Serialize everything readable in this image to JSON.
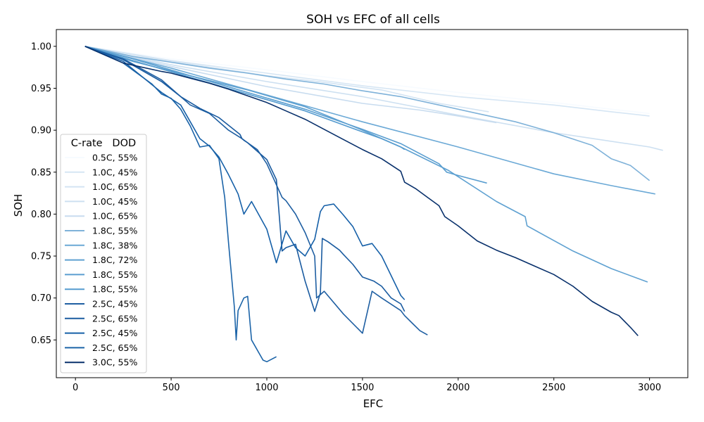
{
  "chart_data": {
    "type": "line",
    "title": "SOH vs EFC of all cells",
    "xlabel": "EFC",
    "ylabel": "SOH",
    "xlim": [
      -100,
      3200
    ],
    "ylim": [
      0.605,
      1.02
    ],
    "xticks": [
      0,
      500,
      1000,
      1500,
      2000,
      2500,
      3000
    ],
    "yticks": [
      0.65,
      0.7,
      0.75,
      0.8,
      0.85,
      0.9,
      0.95,
      1.0
    ],
    "xtick_labels": [
      "0",
      "500",
      "1000",
      "1500",
      "2000",
      "2500",
      "3000"
    ],
    "ytick_labels": [
      "0.65",
      "0.70",
      "0.75",
      "0.80",
      "0.85",
      "0.90",
      "0.95",
      "1.00"
    ],
    "grid": false,
    "legend": {
      "title": "C-rate   DOD",
      "placement": "center-left"
    },
    "series": [
      {
        "name": "0.5C, 55%",
        "color": "#f7fbff",
        "x": [
          50,
          500,
          1000,
          1500,
          2000,
          2500,
          2800,
          3000
        ],
        "y": [
          1.0,
          0.985,
          0.972,
          0.958,
          0.945,
          0.933,
          0.925,
          0.92
        ]
      },
      {
        "name": "1.0C, 45%",
        "color": "#d6e6f4",
        "x": [
          50,
          500,
          1000,
          1500,
          2000,
          2500,
          2800,
          3000
        ],
        "y": [
          1.0,
          0.983,
          0.968,
          0.953,
          0.94,
          0.93,
          0.922,
          0.917
        ]
      },
      {
        "name": "1.0C, 65%",
        "color": "#d3e4f3",
        "x": [
          50,
          500,
          1000,
          1300,
          1600,
          1900,
          2160
        ],
        "y": [
          1.0,
          0.982,
          0.965,
          0.957,
          0.948,
          0.932,
          0.922
        ]
      },
      {
        "name": "1.0C, 45%",
        "color": "#cde0f1",
        "x": [
          50,
          500,
          1000,
          1500,
          2000,
          2500,
          3000,
          3070
        ],
        "y": [
          1.0,
          0.978,
          0.958,
          0.94,
          0.918,
          0.897,
          0.88,
          0.876
        ]
      },
      {
        "name": "1.0C, 65%",
        "color": "#c8dcef",
        "x": [
          50,
          500,
          1000,
          1500,
          1800,
          2000,
          2200
        ],
        "y": [
          1.0,
          0.976,
          0.952,
          0.932,
          0.924,
          0.917,
          0.909
        ]
      },
      {
        "name": "1.8C, 55%",
        "color": "#7fb2d9",
        "x": [
          50,
          300,
          500,
          700,
          900,
          1100,
          1300,
          1500,
          1700,
          1900,
          2100,
          2300,
          2500,
          2700,
          2800,
          2900,
          3000
        ],
        "y": [
          1.0,
          0.988,
          0.981,
          0.974,
          0.968,
          0.961,
          0.955,
          0.947,
          0.94,
          0.93,
          0.92,
          0.91,
          0.897,
          0.882,
          0.866,
          0.858,
          0.84
        ]
      },
      {
        "name": "1.8C, 38%",
        "color": "#6ba9d6",
        "x": [
          50,
          500,
          1000,
          1500,
          2000,
          2500,
          2800,
          3030
        ],
        "y": [
          1.0,
          0.974,
          0.942,
          0.91,
          0.88,
          0.848,
          0.834,
          0.824
        ]
      },
      {
        "name": "1.8C, 72%",
        "color": "#5fa1d1",
        "x": [
          50,
          300,
          650,
          900,
          1200,
          1500,
          1700,
          1950,
          2200,
          2350,
          2360,
          2600,
          2800,
          2990
        ],
        "y": [
          1.0,
          0.982,
          0.962,
          0.948,
          0.928,
          0.9,
          0.88,
          0.852,
          0.815,
          0.797,
          0.786,
          0.756,
          0.735,
          0.719
        ]
      },
      {
        "name": "1.8C, 55%",
        "color": "#5a9ed0",
        "x": [
          50,
          300,
          600,
          900,
          1200,
          1500,
          1700,
          1900,
          1940,
          2000,
          2150
        ],
        "y": [
          1.0,
          0.985,
          0.965,
          0.945,
          0.925,
          0.901,
          0.884,
          0.86,
          0.85,
          0.846,
          0.837
        ]
      },
      {
        "name": "1.8C, 55%",
        "color": "#559bcf",
        "x": [
          50,
          300,
          600,
          900,
          1200,
          1500,
          1600,
          1700,
          1720
        ],
        "y": [
          1.0,
          0.983,
          0.963,
          0.943,
          0.923,
          0.898,
          0.89,
          0.88,
          0.877
        ]
      },
      {
        "name": "2.5C, 45%",
        "color": "#1f5fa2",
        "x": [
          50,
          250,
          450,
          550,
          600,
          650,
          700,
          800,
          870,
          880,
          900,
          950,
          1000,
          1050,
          1080,
          1100,
          1150,
          1200,
          1250,
          1260,
          1300,
          1400,
          1500,
          1550,
          1600,
          1700,
          1720,
          1760,
          1800,
          1840
        ],
        "y": [
          1.0,
          0.985,
          0.96,
          0.94,
          0.93,
          0.925,
          0.92,
          0.9,
          0.89,
          0.888,
          0.885,
          0.877,
          0.86,
          0.835,
          0.82,
          0.816,
          0.8,
          0.778,
          0.75,
          0.7,
          0.708,
          0.681,
          0.658,
          0.708,
          0.7,
          0.685,
          0.679,
          0.67,
          0.661,
          0.656
        ]
      },
      {
        "name": "2.5C, 65%",
        "color": "#1a5ba0",
        "x": [
          50,
          250,
          450,
          550,
          650,
          750,
          860,
          870,
          900,
          950,
          1000,
          1050,
          1080,
          1100,
          1150,
          1200,
          1250,
          1280,
          1290,
          1320,
          1380,
          1400,
          1450,
          1500,
          1560,
          1600,
          1650,
          1700,
          1720
        ],
        "y": [
          1.0,
          0.984,
          0.958,
          0.94,
          0.926,
          0.915,
          0.895,
          0.89,
          0.885,
          0.875,
          0.865,
          0.841,
          0.756,
          0.76,
          0.764,
          0.72,
          0.684,
          0.706,
          0.771,
          0.767,
          0.757,
          0.752,
          0.74,
          0.725,
          0.72,
          0.714,
          0.7,
          0.693,
          0.684
        ]
      },
      {
        "name": "2.5C, 45%",
        "color": "#1660a8",
        "x": [
          50,
          250,
          450,
          550,
          600,
          650,
          700,
          750,
          800,
          850,
          880,
          920,
          1000,
          1050,
          1100,
          1150,
          1200,
          1250,
          1280,
          1300,
          1350,
          1400,
          1450,
          1500,
          1550,
          1600,
          1700,
          1720
        ],
        "y": [
          1.0,
          0.982,
          0.945,
          0.93,
          0.91,
          0.89,
          0.881,
          0.868,
          0.847,
          0.824,
          0.8,
          0.815,
          0.782,
          0.742,
          0.78,
          0.76,
          0.75,
          0.77,
          0.803,
          0.81,
          0.812,
          0.799,
          0.785,
          0.762,
          0.765,
          0.75,
          0.703,
          0.698
        ]
      },
      {
        "name": "2.5C, 65%",
        "color": "#1c64a8",
        "x": [
          50,
          250,
          400,
          450,
          500,
          550,
          600,
          650,
          700,
          750,
          780,
          800,
          830,
          840,
          850,
          880,
          900,
          920,
          980,
          1000,
          1050
        ],
        "y": [
          1.0,
          0.98,
          0.955,
          0.943,
          0.938,
          0.925,
          0.905,
          0.88,
          0.882,
          0.866,
          0.82,
          0.766,
          0.69,
          0.65,
          0.685,
          0.7,
          0.702,
          0.65,
          0.626,
          0.624,
          0.63
        ]
      },
      {
        "name": "3.0C, 55%",
        "color": "#08306b",
        "x": [
          50,
          250,
          450,
          500,
          600,
          700,
          800,
          900,
          1000,
          1100,
          1200,
          1300,
          1400,
          1500,
          1600,
          1700,
          1720,
          1780,
          1840,
          1900,
          1930,
          2000,
          2100,
          2200,
          2300,
          2400,
          2500,
          2600,
          2700,
          2800,
          2840,
          2900,
          2940
        ],
        "y": [
          1.0,
          0.98,
          0.97,
          0.968,
          0.962,
          0.956,
          0.949,
          0.941,
          0.933,
          0.923,
          0.913,
          0.901,
          0.889,
          0.877,
          0.866,
          0.851,
          0.838,
          0.83,
          0.82,
          0.81,
          0.797,
          0.786,
          0.768,
          0.757,
          0.748,
          0.738,
          0.728,
          0.714,
          0.696,
          0.683,
          0.679,
          0.665,
          0.655
        ]
      }
    ]
  }
}
